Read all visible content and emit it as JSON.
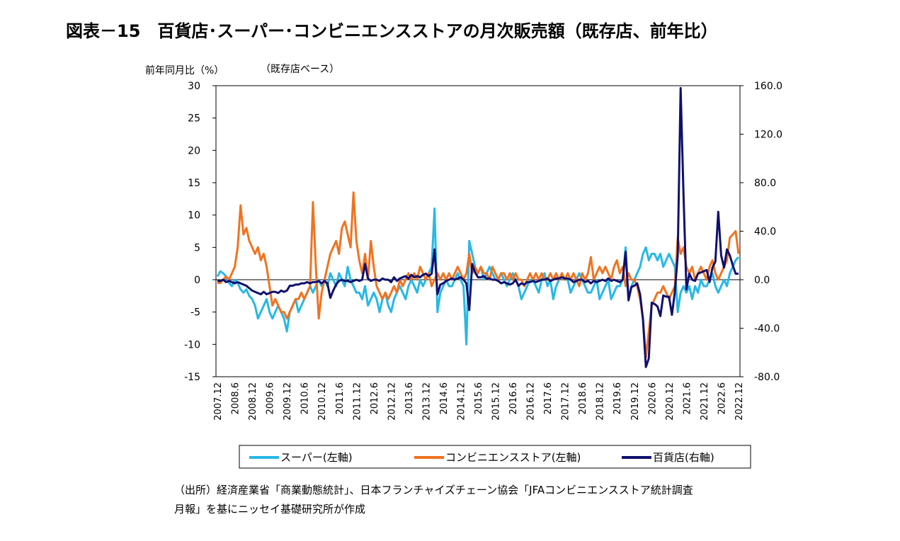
{
  "chart_data": {
    "type": "line",
    "title": "図表－15　百貨店･スーパー･コンビニエンスストアの月次販売額（既存店、前年比）",
    "y_label": "前年同月比（%）",
    "subtitle": "（既存店ベース）",
    "source": [
      "（出所）経済産業省「商業動態統計」、日本フランチャイズチェーン協会「JFAコンビニエンスストア統計調査",
      "月報」を基にニッセイ基礎研究所が作成"
    ],
    "categories": [
      "2007.12",
      null,
      null,
      null,
      null,
      null,
      "2008.6",
      null,
      null,
      null,
      null,
      null,
      "2008.12",
      null,
      null,
      null,
      null,
      null,
      "2009.6",
      null,
      null,
      null,
      null,
      null,
      "2009.12",
      null,
      null,
      null,
      null,
      null,
      "2010.6",
      null,
      null,
      null,
      null,
      null,
      "2010.12",
      null,
      null,
      null,
      null,
      null,
      "2011.6",
      null,
      null,
      null,
      null,
      null,
      "2011.12",
      null,
      null,
      null,
      null,
      null,
      "2012.6",
      null,
      null,
      null,
      null,
      null,
      "2012.12",
      null,
      null,
      null,
      null,
      null,
      "2013.6",
      null,
      null,
      null,
      null,
      null,
      "2013.12",
      null,
      null,
      null,
      null,
      null,
      "2014.6",
      null,
      null,
      null,
      null,
      null,
      "2014.12",
      null,
      null,
      null,
      null,
      null,
      "2015.6",
      null,
      null,
      null,
      null,
      null,
      "2015.12",
      null,
      null,
      null,
      null,
      null,
      "2016.6",
      null,
      null,
      null,
      null,
      null,
      "2016.12",
      null,
      null,
      null,
      null,
      null,
      "2017.6",
      null,
      null,
      null,
      null,
      null,
      "2017.12",
      null,
      null,
      null,
      null,
      null,
      "2018.6",
      null,
      null,
      null,
      null,
      null,
      "2018.12",
      null,
      null,
      null,
      null,
      null,
      "2019.6",
      null,
      null,
      null,
      null,
      null,
      "2019.12",
      null,
      null,
      null,
      null,
      null,
      "2020.6",
      null,
      null,
      null,
      null,
      null,
      "2020.12",
      null,
      null,
      null,
      null,
      null,
      "2021.6",
      null,
      null,
      null,
      null,
      null,
      "2021.12",
      null,
      null,
      null,
      null,
      null,
      "2022.6",
      null,
      null,
      null,
      null,
      null,
      "2022.12"
    ],
    "series": [
      {
        "name": "スーパー(左軸)",
        "color": "#27b8e6",
        "values": [
          0.5,
          1.3,
          1.0,
          0.5,
          -0.5,
          -1,
          0,
          -0.5,
          -1.5,
          -2,
          -1.5,
          -2.5,
          -3,
          -4,
          -6,
          -5,
          -4,
          -3,
          -5,
          -6,
          -5,
          -4,
          -5,
          -6,
          -8,
          -5,
          -4,
          -3,
          -5,
          -4,
          -3,
          -2,
          -1,
          -2,
          -1,
          0,
          -1,
          0,
          -1,
          1,
          0,
          -1,
          1,
          0,
          -1,
          2,
          0,
          -1,
          -2,
          -2,
          -3,
          -1,
          -4,
          -3,
          -2,
          -3,
          -5,
          -3,
          -2,
          -4,
          -5,
          -3,
          -2,
          -1,
          -2,
          -3,
          -1,
          0,
          -1,
          -2,
          0,
          -1,
          0,
          1,
          2,
          11,
          -5,
          -2,
          -1,
          0,
          -1,
          -1,
          0,
          1,
          0,
          -1,
          -10,
          6,
          4,
          2,
          1,
          2,
          0,
          1,
          2,
          1,
          0,
          0,
          1,
          0,
          -1,
          0,
          1,
          0,
          -1,
          -3,
          -2,
          -1,
          0,
          0,
          -1,
          -2,
          0,
          1,
          -1,
          0,
          -3,
          -1,
          0,
          1,
          0,
          0,
          -2,
          -1,
          0,
          1,
          0,
          -1,
          -2,
          -2,
          -1,
          0,
          -3,
          -2,
          -1,
          0,
          -3,
          -2,
          -1,
          -1,
          0,
          5,
          -3,
          -1,
          0,
          1,
          2,
          4,
          5,
          3,
          4,
          4,
          3,
          4,
          2,
          3,
          4,
          3,
          2,
          -5,
          -2,
          -1,
          -2,
          -1,
          -3,
          -1,
          -2,
          0,
          -1,
          -1,
          0,
          1,
          -1,
          -2,
          -1,
          0,
          -1,
          1,
          2,
          3,
          3.5
        ]
      },
      {
        "name": "コンビニエンスストア(左軸)",
        "color": "#f07320",
        "values": [
          -0.5,
          -0.5,
          0,
          0.5,
          0,
          1,
          2,
          5,
          11.5,
          7,
          8,
          6,
          5,
          4,
          5,
          3,
          4,
          2,
          -1,
          -4,
          -3,
          -4,
          -5,
          -5,
          -6,
          -5,
          -4,
          -3,
          -3,
          -2,
          -3,
          -2,
          -1,
          12,
          2,
          -6,
          -2,
          0,
          2,
          4,
          5,
          6,
          4,
          8,
          9,
          7,
          5,
          13.5,
          6,
          3,
          1,
          4,
          0,
          6,
          2,
          -1,
          -2,
          -3,
          -2,
          -3,
          -2,
          -1,
          -2,
          0,
          -1,
          0,
          1,
          0,
          1,
          0,
          2,
          1,
          0,
          1,
          -1,
          0,
          1,
          0,
          1,
          0,
          1,
          0,
          1,
          2,
          1,
          0,
          1,
          4,
          1,
          2,
          1,
          2,
          1,
          1,
          0,
          2,
          1,
          0,
          1,
          1,
          0,
          1,
          0,
          1,
          0,
          0,
          -1,
          0,
          1,
          0,
          1,
          0,
          1,
          0,
          0,
          1,
          0,
          1,
          0,
          1,
          0,
          1,
          0,
          1,
          0,
          -1,
          1,
          0,
          1,
          3.5,
          0,
          1,
          2,
          1,
          2,
          1,
          0,
          2,
          3,
          1,
          2,
          -1,
          1,
          0,
          0,
          -1,
          -3,
          -6,
          -12,
          -8,
          -4,
          -3,
          -2,
          -2,
          -1,
          -2,
          -3,
          -2,
          -1,
          6.5,
          4,
          5,
          2,
          1,
          2,
          0,
          1,
          2,
          1,
          0,
          2,
          3,
          1,
          0,
          1,
          2,
          3,
          6.5,
          7,
          7.5,
          4
        ]
      },
      {
        "name": "百貨店(右軸)",
        "color": "#10106e",
        "axis": "y2",
        "values": [
          -1,
          -1,
          0,
          -2,
          -1,
          -2,
          -3,
          -2,
          -3,
          -4,
          -5,
          -7,
          -9,
          -10,
          -11,
          -12,
          -10,
          -12,
          -11,
          -10,
          -10,
          -11,
          -9,
          -10,
          -9,
          -5,
          -5,
          -4,
          -4,
          -3,
          -3,
          -2,
          -3,
          -2,
          -2,
          -1,
          -3,
          -1,
          -3,
          -15,
          -9,
          -4,
          -1,
          0,
          -1,
          -1,
          -2,
          -1,
          0,
          -1,
          0,
          13,
          1,
          -1,
          0,
          0,
          -1,
          1,
          0,
          0,
          -2,
          2,
          -1,
          1,
          2,
          3,
          1,
          4,
          2,
          3,
          2,
          4,
          5,
          3,
          5,
          25,
          -12,
          -4,
          -3,
          -1,
          0,
          1,
          0,
          1,
          2,
          0,
          -3,
          -25,
          13,
          6,
          2,
          2,
          3,
          1,
          1,
          0,
          0,
          -1,
          -3,
          -2,
          -3,
          -4,
          -3,
          0,
          -5,
          -3,
          -4,
          -2,
          -2,
          -1,
          -2,
          -1,
          0,
          0,
          1,
          -1,
          0,
          1,
          1,
          2,
          1,
          1,
          0,
          -2,
          -1,
          0,
          0,
          -2,
          -1,
          -3,
          -1,
          -2,
          -1,
          0,
          -1,
          1,
          -1,
          0,
          -1,
          -2,
          0,
          23,
          -17,
          -6,
          -5,
          -3,
          -12,
          -33,
          -72,
          -65,
          -19,
          -20,
          -22,
          -30,
          -13,
          -14,
          -14,
          -29,
          -10,
          20,
          158,
          70,
          -8,
          5,
          0,
          -1,
          5,
          6,
          7,
          8,
          -2,
          10,
          15,
          56,
          20,
          10,
          25,
          20,
          12,
          5,
          5
        ]
      }
    ],
    "ylim": [
      -15,
      30
    ],
    "yticks": [
      -15,
      -10,
      -5,
      0,
      5,
      10,
      15,
      20,
      25,
      30
    ],
    "y2lim": [
      -80,
      160
    ],
    "y2ticks": [
      {
        "value": -80,
        "label": "-80.0"
      },
      {
        "value": -40,
        "label": "-40.0"
      },
      {
        "value": 0,
        "label": "0.0"
      },
      {
        "value": 40,
        "label": "40.0"
      },
      {
        "value": 80,
        "label": "80.0"
      },
      {
        "value": 120,
        "label": "120.0"
      },
      {
        "value": 160,
        "label": "160.0"
      }
    ],
    "y2_negative_color": "#e00000",
    "grid": false,
    "zero_line": true,
    "legend": "bottom"
  }
}
